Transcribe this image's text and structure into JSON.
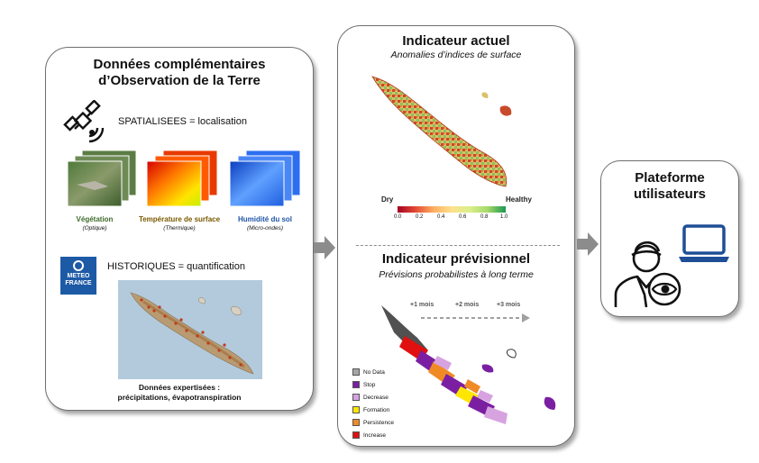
{
  "left_panel": {
    "title_line1": "Données complémentaires",
    "title_line2": "d’Observation de la Terre",
    "spatial_label": "SPATIALISEES = localisation",
    "thumbnails": [
      {
        "title": "Végétation",
        "subtitle": "(Optique)",
        "color": "#3f6b2a"
      },
      {
        "title": "Température de surface",
        "subtitle": "(Thermique)",
        "color": "#7a5a00"
      },
      {
        "title": "Humidité du sol",
        "subtitle": "(Micro-ondes)",
        "color": "#1f55a8"
      }
    ],
    "historic_label": "HISTORIQUES = quantification",
    "meteo_logo_line1": "METEO",
    "meteo_logo_line2": "FRANCE",
    "expert_line1": "Données expertisées :",
    "expert_line2": "précipitations, évapotranspiration"
  },
  "middle_panel": {
    "title": "Indicateur actuel",
    "subtitle": "Anomalies d’indices de surface",
    "dry_label": "Dry",
    "healthy_label": "Healthy",
    "colorbar_ticks": [
      "0.0",
      "0.2",
      "0.4",
      "0.6",
      "0.8",
      "1.0"
    ],
    "forecast_title": "Indicateur prévisionnel",
    "forecast_subtitle": "Prévisions probabilistes à long terme",
    "horizons": [
      "+1 mois",
      "+2 mois",
      "+3 mois"
    ],
    "legend": [
      {
        "label": "No Data",
        "color": "#a6a6a6"
      },
      {
        "label": "Stop",
        "color": "#7b1fa2"
      },
      {
        "label": "Decrease",
        "color": "#d6a3e0"
      },
      {
        "label": "Formation",
        "color": "#ffe600"
      },
      {
        "label": "Persistence",
        "color": "#f08a24"
      },
      {
        "label": "Increase",
        "color": "#e01010"
      }
    ]
  },
  "right_panel": {
    "title_line1": "Plateforme",
    "title_line2": "utilisateurs"
  },
  "icons": [
    "satellite-icon",
    "meteo-france-logo",
    "user-icon",
    "eye-icon",
    "laptop-icon",
    "arrow-right-icon"
  ],
  "colors": {
    "panel_border": "#6f6f6f",
    "arrow": "#8c8c8c",
    "laptop": "#1f4e96",
    "dry": "#a50026",
    "healthy": "#1a7f37"
  }
}
